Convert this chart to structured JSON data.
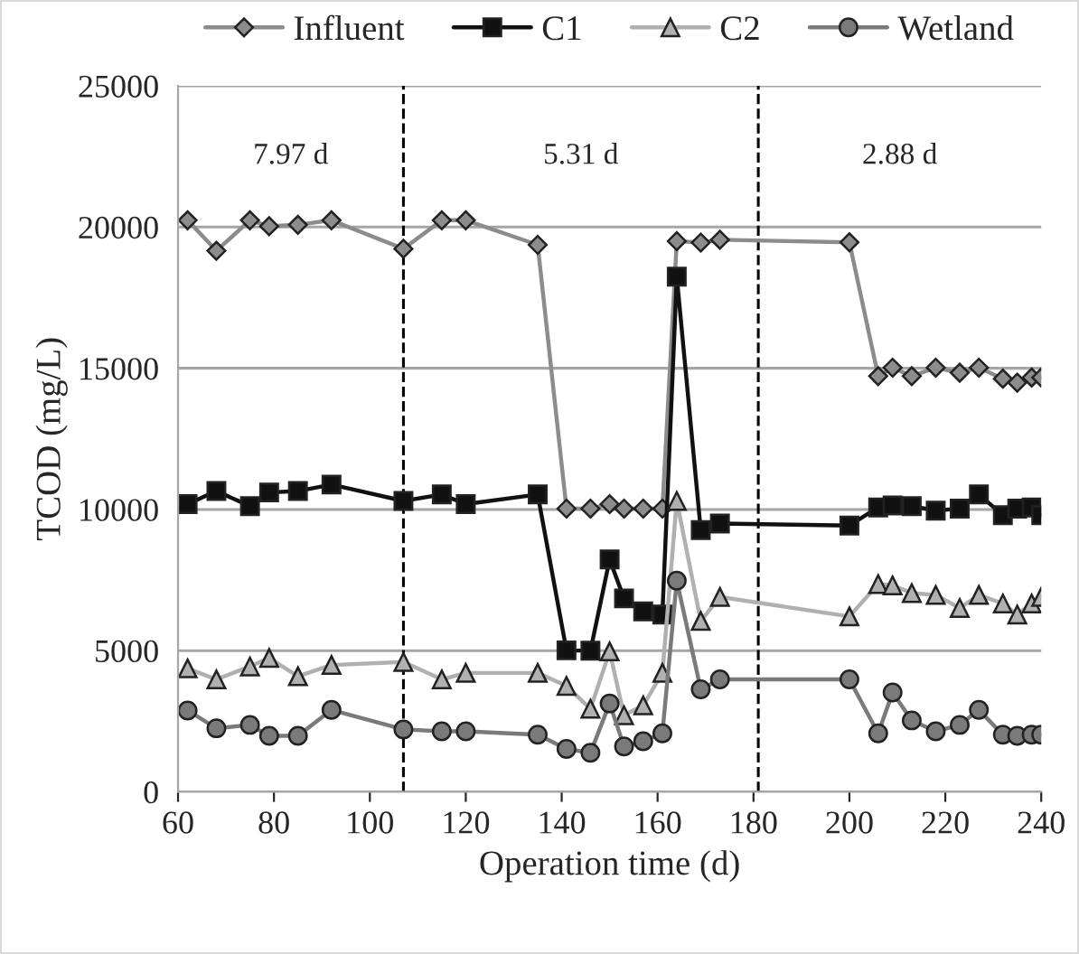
{
  "chart_data": {
    "type": "line",
    "xlabel": "Operation time (d)",
    "ylabel": "TCOD (mg/L)",
    "x": [
      62,
      68,
      75,
      79,
      85,
      92,
      107,
      115,
      120,
      135,
      141,
      146,
      150,
      153,
      157,
      161,
      164,
      169,
      173,
      200,
      206,
      209,
      213,
      218,
      223,
      227,
      232,
      235,
      238,
      240
    ],
    "series": [
      {
        "name": "Influent",
        "color": "#8c8c8c",
        "marker": "diamond",
        "values": [
          20240,
          19160,
          20240,
          20030,
          20080,
          20240,
          19230,
          20240,
          20240,
          19370,
          10030,
          10030,
          10190,
          10030,
          10030,
          10030,
          19500,
          19450,
          19550,
          19460,
          14720,
          15020,
          14720,
          15020,
          14840,
          15020,
          14630,
          14490,
          14670,
          14670
        ]
      },
      {
        "name": "C1",
        "color": "#111111",
        "marker": "square",
        "values": [
          10190,
          10650,
          10120,
          10600,
          10650,
          10880,
          10300,
          10530,
          10190,
          10530,
          5010,
          5000,
          8230,
          6850,
          6390,
          6280,
          18240,
          9270,
          9500,
          9430,
          10070,
          10140,
          10120,
          9960,
          10030,
          10530,
          9800,
          10030,
          10070,
          9800
        ]
      },
      {
        "name": "C2",
        "color": "#b0b0b0",
        "marker": "triangle",
        "values": [
          4370,
          3980,
          4440,
          4740,
          4090,
          4490,
          4600,
          3980,
          4210,
          4210,
          3750,
          2940,
          4970,
          2710,
          3060,
          4210,
          10300,
          6050,
          6900,
          6210,
          7360,
          7310,
          7040,
          6970,
          6510,
          6970,
          6670,
          6280,
          6670,
          6900
        ]
      },
      {
        "name": "Wetland",
        "color": "#7a7a7a",
        "marker": "circle",
        "values": [
          2880,
          2250,
          2370,
          1980,
          1980,
          2900,
          2210,
          2140,
          2140,
          2020,
          1520,
          1380,
          3130,
          1610,
          1790,
          2070,
          7480,
          3630,
          3980,
          3980,
          2070,
          3520,
          2530,
          2140,
          2370,
          2900,
          2020,
          1980,
          2020,
          2020
        ]
      }
    ],
    "xlim": [
      60,
      240
    ],
    "xticks": [
      60,
      80,
      100,
      120,
      140,
      160,
      180,
      200,
      220,
      240
    ],
    "ylim": [
      0,
      25000
    ],
    "yticks": [
      0,
      5000,
      10000,
      15000,
      20000,
      25000
    ],
    "grid": "y",
    "legend": "top",
    "ref_lines": [
      {
        "axis": "x",
        "value": 107,
        "color": "#000000",
        "line_style": "dashed"
      },
      {
        "axis": "x",
        "value": 181,
        "color": "#000000",
        "line_style": "dashed"
      }
    ],
    "annotations": [
      "7.97 d",
      "5.31 d",
      "2.88 d"
    ]
  }
}
